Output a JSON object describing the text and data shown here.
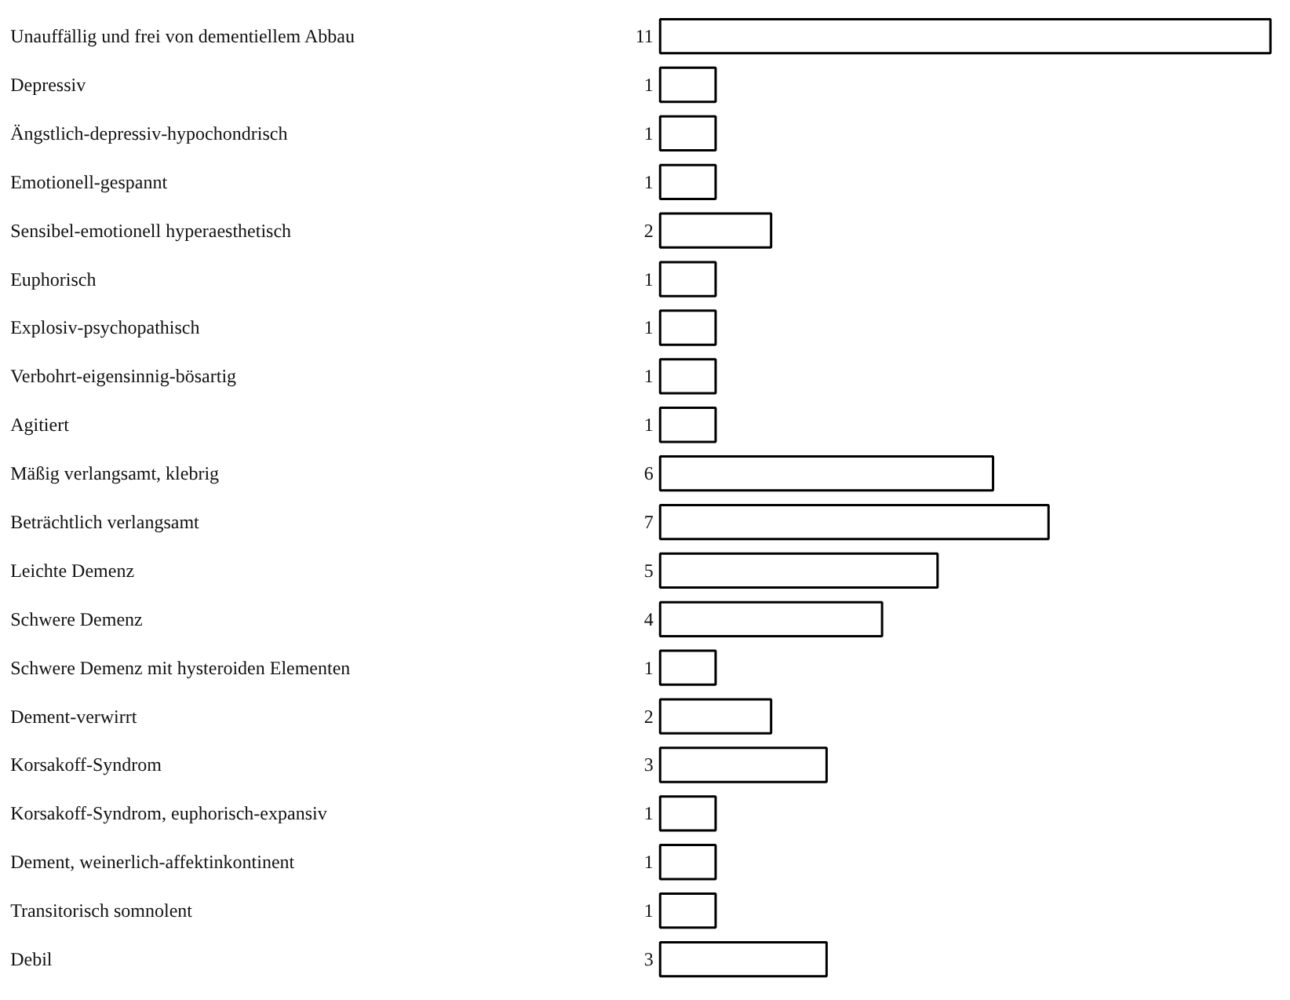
{
  "chart_data": {
    "type": "bar",
    "orientation": "horizontal",
    "data_labels": true,
    "grid": false,
    "color": "#ffffff",
    "categories": [
      "Unauffällig und frei von dementiellem Abbau",
      "Depressiv",
      "Ängstlich-depressiv-hypochondrisch",
      "Emotionell-gespannt",
      "Sensibel-emotionell hyperaesthetisch",
      "Euphorisch",
      "Explosiv-psychopathisch",
      "Verbohrt-eigensinnig-bösartig",
      "Agitiert",
      "Mäßig verlangsamt, klebrig",
      "Beträchtlich verlangsamt",
      "Leichte Demenz",
      "Schwere Demenz",
      "Schwere Demenz mit hysteroiden Elementen",
      "Dement-verwirrt",
      "Korsakoff-Syndrom",
      "Korsakoff-Syndrom, euphorisch-expansiv",
      "Dement, weinerlich-affektinkontinent",
      "Transitorisch somnolent",
      "Debil"
    ],
    "values": [
      11,
      1,
      1,
      1,
      2,
      1,
      1,
      1,
      1,
      6,
      7,
      5,
      4,
      1,
      2,
      3,
      1,
      1,
      1,
      3
    ]
  }
}
